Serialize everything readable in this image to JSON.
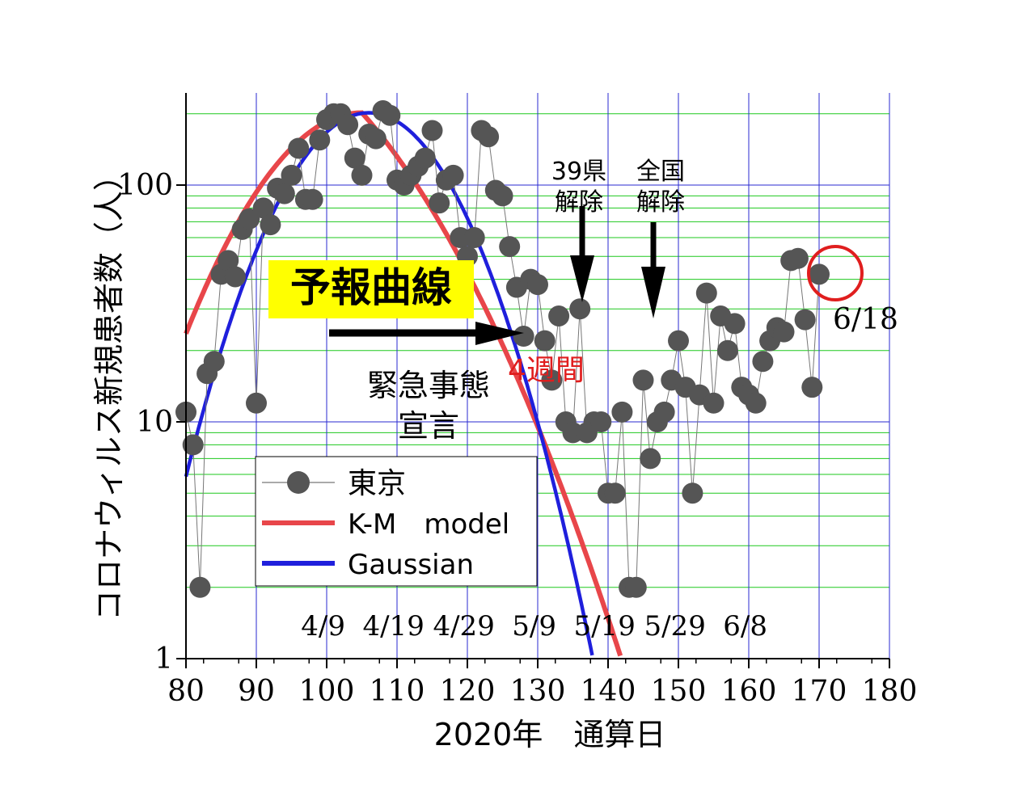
{
  "chart_data": {
    "type": "scatter",
    "title": "",
    "xlabel": "2020年　通算日",
    "ylabel": "コロナウィルス新規患者数（人）",
    "xlim": [
      80,
      180
    ],
    "ylim": [
      1,
      300
    ],
    "y_scale": "log",
    "grid": true,
    "x_ticks": [
      80,
      90,
      100,
      110,
      120,
      130,
      140,
      150,
      160,
      170,
      180
    ],
    "y_ticks": [
      {
        "value": 1,
        "label": "1"
      },
      {
        "value": 10,
        "label": "10"
      },
      {
        "value": 100,
        "label": "100"
      }
    ],
    "legend_position": "lower-left",
    "series": [
      {
        "name": "東京",
        "kind": "points",
        "color": "#555555",
        "x": [
          80,
          81,
          82,
          83,
          84,
          85,
          86,
          87,
          88,
          89,
          90,
          91,
          92,
          93,
          94,
          95,
          96,
          97,
          98,
          99,
          100,
          101,
          102,
          103,
          104,
          105,
          106,
          107,
          108,
          109,
          110,
          111,
          112,
          113,
          114,
          115,
          116,
          117,
          118,
          119,
          120,
          121,
          122,
          123,
          124,
          125,
          126,
          127,
          128,
          129,
          130,
          131,
          132,
          133,
          134,
          135,
          136,
          137,
          138,
          139,
          140,
          141,
          142,
          143,
          144,
          145,
          146,
          147,
          148,
          149,
          150,
          151,
          152,
          153,
          154,
          155,
          156,
          157,
          158,
          159,
          160,
          161,
          162,
          163,
          164,
          165,
          166,
          167,
          168,
          169,
          170
        ],
        "y": [
          11,
          8,
          2,
          16,
          18,
          42,
          48,
          41,
          65,
          72,
          12,
          80,
          68,
          97,
          92,
          110,
          143,
          87,
          87,
          155,
          189,
          200,
          200,
          180,
          130,
          110,
          164,
          157,
          206,
          197,
          105,
          100,
          110,
          120,
          130,
          170,
          84,
          105,
          110,
          60,
          50,
          60,
          170,
          160,
          95,
          90,
          55,
          37,
          23,
          40,
          38,
          22,
          15,
          28,
          10,
          9,
          30,
          9,
          10,
          10,
          5,
          5,
          11,
          2,
          2,
          15,
          7,
          10,
          11,
          15,
          22,
          14,
          5,
          13,
          35,
          12,
          28,
          20,
          26,
          14,
          13,
          12,
          18,
          22,
          25,
          24,
          48,
          49,
          27,
          14,
          42
        ]
      },
      {
        "name": "K-M　model",
        "kind": "curve",
        "color": "#e8464a",
        "peak_x": 105,
        "peak_y": 202
      },
      {
        "name": "Gaussian",
        "kind": "curve",
        "color": "#1f1fdc",
        "peak_x": 106,
        "peak_y": 202
      }
    ],
    "date_labels": [
      "4/9",
      "4/19",
      "4/29",
      "5/9",
      "5/19",
      "5/29",
      "6/8"
    ],
    "annotations": {
      "forecast_label": "予報曲線",
      "four_weeks": "4週間",
      "emergency_line1": "緊急事態",
      "emergency_line2": "宣言",
      "lift39_line1": "39県",
      "lift39_line2": "解除",
      "liftall_line1": "全国",
      "liftall_line2": "解除",
      "last_date": "6/18"
    }
  }
}
